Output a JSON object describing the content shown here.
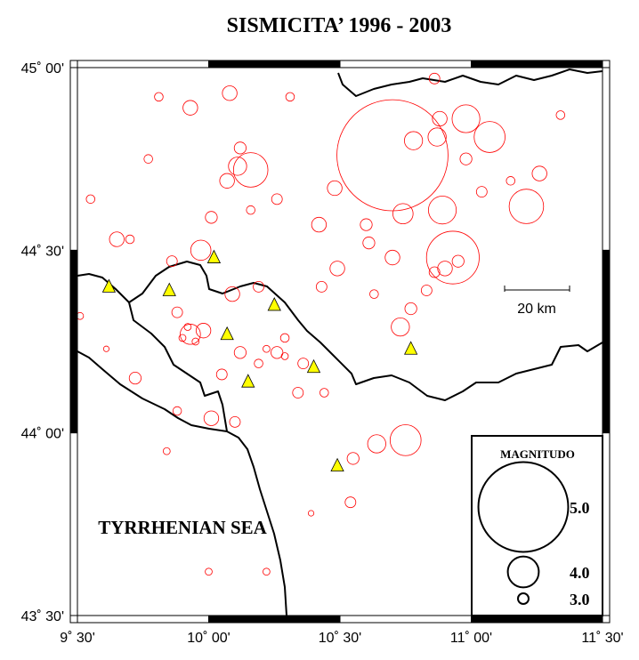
{
  "title": "SISMICITA’ 1996 - 2003",
  "xlim": [
    9.5,
    11.5
  ],
  "ylim": [
    43.5,
    45
  ],
  "xticks": [
    {
      "value": 9.5,
      "label": "9˚ 30'"
    },
    {
      "value": 10,
      "label": "10˚ 00'"
    },
    {
      "value": 10.5,
      "label": "10˚ 30'"
    },
    {
      "value": 11,
      "label": "11˚ 00'"
    },
    {
      "value": 11.5,
      "label": "11˚ 30'"
    }
  ],
  "yticks": [
    {
      "value": 43.5,
      "label": "43˚ 30'"
    },
    {
      "value": 44,
      "label": "44˚ 00'"
    },
    {
      "value": 44.5,
      "label": "44˚ 30'"
    },
    {
      "value": 45,
      "label": "45˚ 00'"
    }
  ],
  "events": {
    "color": "#ff0000",
    "lon": [
      10.7,
      10.93,
      10.98,
      11.07,
      10.87,
      11.21,
      10.89,
      10.78,
      10.74,
      10.16,
      10.11,
      10.07,
      9.93,
      10.08,
      10.48,
      10.42,
      9.97,
      10.01,
      9.65,
      9.7,
      9.86,
      10.09,
      10.19,
      9.93,
      9.98,
      10.12,
      10.26,
      10.36,
      10.75,
      10.64,
      10.55,
      10.01,
      10.1,
      9.72,
      10.54,
      11.26,
      11.34,
      11.15,
      10.7,
      10.83,
      10.73,
      10.77,
      10.49,
      10.61,
      9.55,
      9.77,
      9.81,
      10.26,
      10.6,
      10.31,
      10.16,
      10.86,
      10.88,
      10.98,
      11.04,
      10.34,
      10.44,
      9.88,
      9.84,
      10.22,
      10.0,
      10.39,
      9.61,
      9.51,
      9.88,
      10.19,
      10.29,
      10.05,
      10.43,
      10.63,
      9.92,
      9.95,
      9.9,
      10.22,
      10.29,
      10.9,
      10.95,
      10.86,
      10.12
    ],
    "lat": [
      44.76,
      44.48,
      44.86,
      44.81,
      44.81,
      44.62,
      44.61,
      44.8,
      44.6,
      44.72,
      44.73,
      44.69,
      44.89,
      44.93,
      44.67,
      44.57,
      44.5,
      44.59,
      44.53,
      44.53,
      44.47,
      44.38,
      44.4,
      44.27,
      44.28,
      44.22,
      44.22,
      44.19,
      43.98,
      43.97,
      43.93,
      44.04,
      44.03,
      44.15,
      43.81,
      44.71,
      44.87,
      44.69,
      44.48,
      44.39,
      44.29,
      44.34,
      44.45,
      44.52,
      44.64,
      44.75,
      44.92,
      44.64,
      44.57,
      44.92,
      44.61,
      44.97,
      44.86,
      44.75,
      44.66,
      44.11,
      44.11,
      44.06,
      43.95,
      43.62,
      43.62,
      43.78,
      44.23,
      44.32,
      44.33,
      44.19,
      44.26,
      44.16,
      44.4,
      44.38,
      44.29,
      44.25,
      44.26,
      44.23,
      44.21,
      44.45,
      44.47,
      44.44,
      44.78
    ],
    "magnitude": [
      5.2,
      4.5,
      3.9,
      4.0,
      3.5,
      4.1,
      3.9,
      3.5,
      3.6,
      4.1,
      3.5,
      3.3,
      3.3,
      3.3,
      3.3,
      3.3,
      3.6,
      3.1,
      3.3,
      2.8,
      3.0,
      3.3,
      3.0,
      3.6,
      3.3,
      3.1,
      3.1,
      3.0,
      4.0,
      3.5,
      3.1,
      3.3,
      3.0,
      3.1,
      3.0,
      3.3,
      2.8,
      2.8,
      3.3,
      3.0,
      3.5,
      3.1,
      3.3,
      3.1,
      2.8,
      2.8,
      2.8,
      3.0,
      3.1,
      2.8,
      2.8,
      3.0,
      3.3,
      3.1,
      3.0,
      3.0,
      2.8,
      2.8,
      2.6,
      2.6,
      2.6,
      2.4,
      2.4,
      2.6,
      3.0,
      2.8,
      2.8,
      3.0,
      3.0,
      2.8,
      2.6,
      2.6,
      2.6,
      2.6,
      2.6,
      3.3,
      3.1,
      3.0,
      3.1
    ]
  },
  "stations": {
    "color": "#ffff00",
    "lon": [
      9.62,
      9.85,
      10.02,
      10.25,
      10.07,
      10.15,
      10.4,
      10.77,
      10.49
    ],
    "lat": [
      44.4,
      44.39,
      44.48,
      44.35,
      44.27,
      44.14,
      44.18,
      44.23,
      43.91
    ]
  },
  "legend": {
    "title": "MAGNITUDO",
    "magnitudes": [
      {
        "value": 5,
        "label": "5.0"
      },
      {
        "value": 4,
        "label": "4.0"
      },
      {
        "value": 3,
        "label": "3.0"
      }
    ]
  },
  "scale_label": "20 km",
  "sea_label": "TYRRHENIAN SEA"
}
